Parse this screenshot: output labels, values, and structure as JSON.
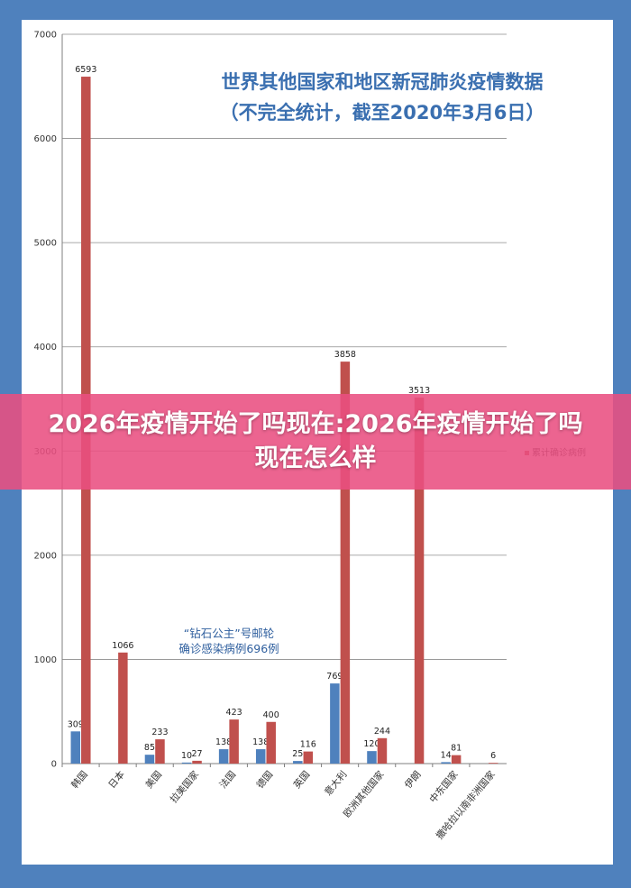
{
  "page": {
    "banner_text": "2026年疫情开始了吗现在:2026年疫情开始了吗现在怎么样"
  },
  "chart_data": {
    "type": "bar",
    "title": "世界其他国家和地区新冠肺炎疫情数据",
    "subtitle": "（不完全统计，截至2020年3月6日）",
    "categories": [
      "韩国",
      "日本",
      "美国",
      "拉美国家",
      "法国",
      "德国",
      "英国",
      "意大利",
      "欧洲其他国家",
      "伊朗",
      "中东国家",
      "撒哈拉以南非洲国家"
    ],
    "series": [
      {
        "name": "",
        "color": "#4f81bd",
        "values": [
          309,
          null,
          85,
          10,
          138,
          138,
          25,
          769,
          120,
          null,
          14,
          null
        ]
      },
      {
        "name": "累计确诊病例",
        "color": "#c0504d",
        "values": [
          6593,
          1066,
          233,
          27,
          423,
          400,
          116,
          3858,
          244,
          3513,
          81,
          6
        ]
      }
    ],
    "yticks": [
      0,
      1000,
      2000,
      3000,
      4000,
      5000,
      6000,
      7000
    ],
    "ylim": [
      0,
      7000
    ],
    "grid": true,
    "legend_position": "right",
    "annotation": [
      "“钻石公主”号邮轮",
      "确诊感染病例696例"
    ]
  }
}
